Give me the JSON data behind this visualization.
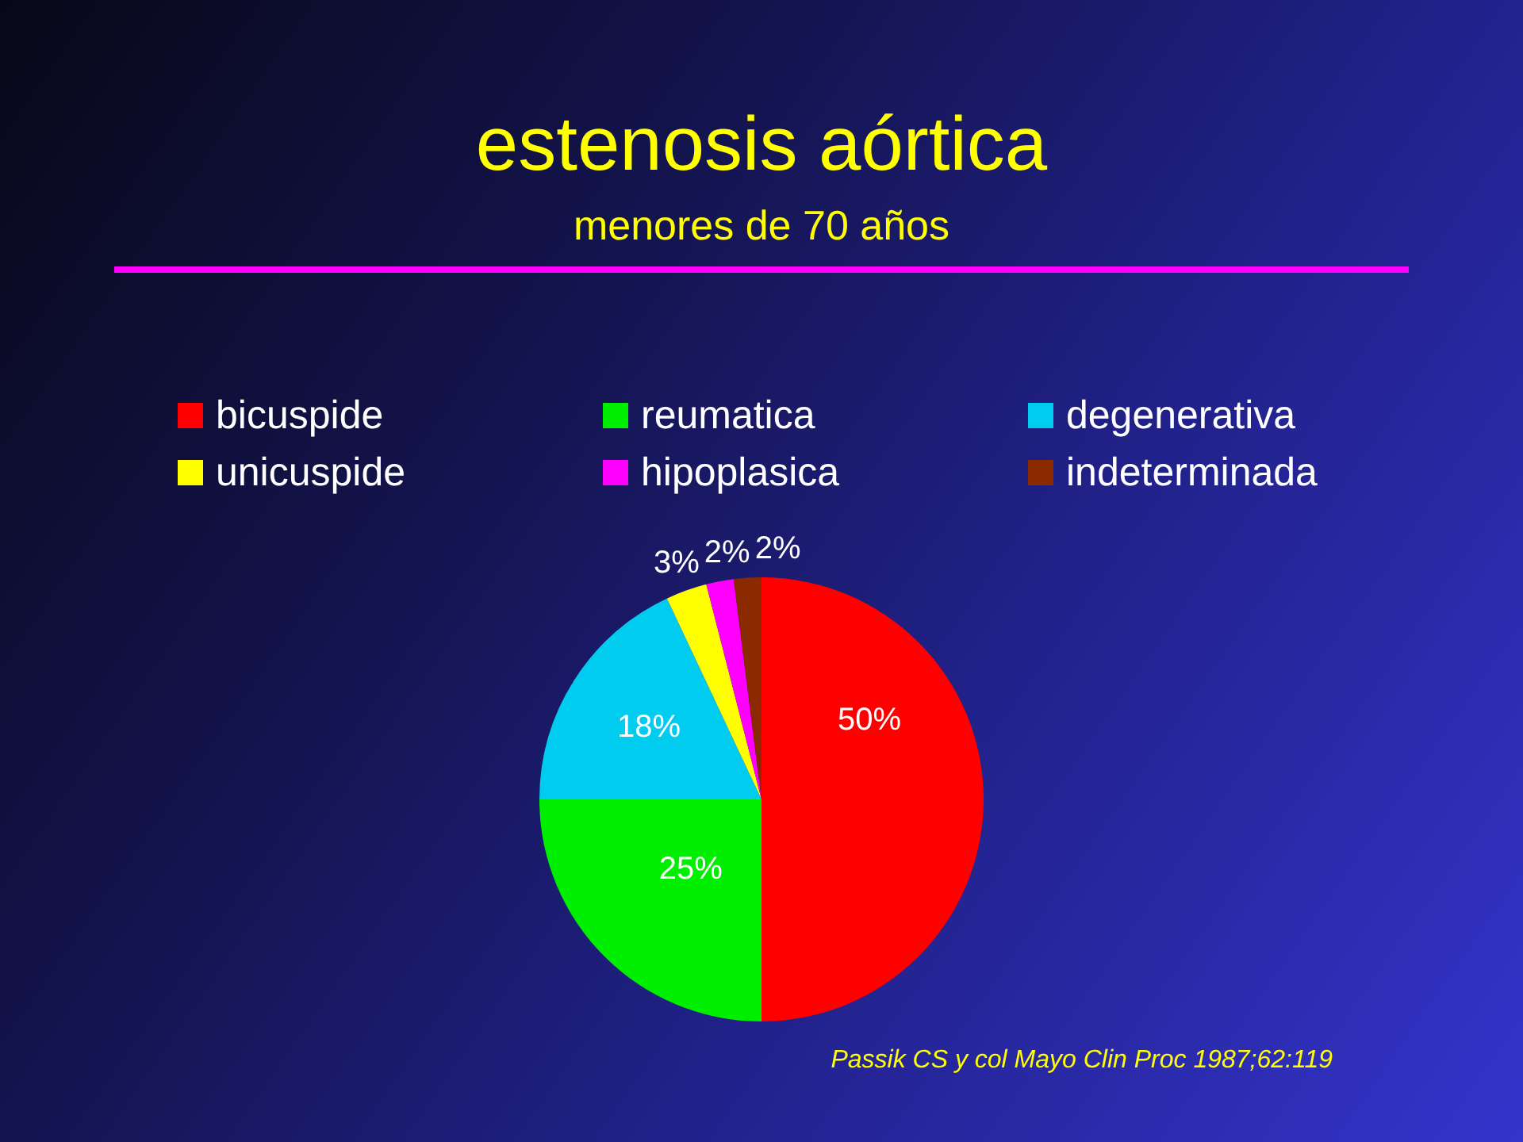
{
  "chart_data": {
    "type": "pie",
    "title": "estenosis aórtica",
    "subtitle": "menores de 70 años",
    "categories": [
      "bicuspide",
      "reumatica",
      "degenerativa",
      "unicuspide",
      "hipoplasica",
      "indeterminada"
    ],
    "values": [
      50,
      25,
      18,
      3,
      2,
      2
    ],
    "colors": [
      "#ff0000",
      "#00ee00",
      "#00ccf0",
      "#ffff00",
      "#ff00ff",
      "#8b2a00"
    ],
    "value_labels": [
      "50%",
      "25%",
      "18%",
      "3%",
      "2%",
      "2%"
    ],
    "legend": "top",
    "annotations": [
      "Passik CS y col Mayo Clin Proc 1987;62:119"
    ]
  }
}
